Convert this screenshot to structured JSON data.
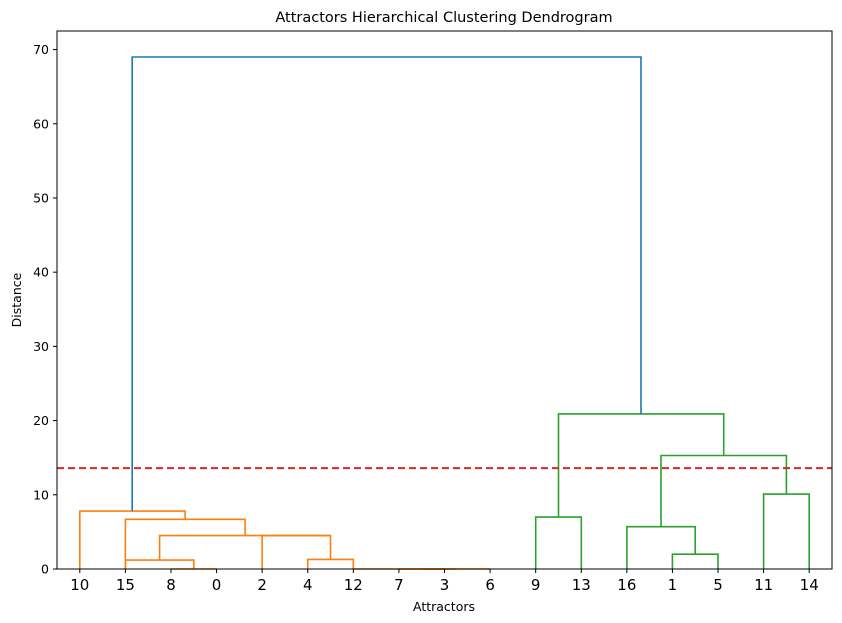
{
  "chart_data": {
    "type": "dendrogram",
    "title": "Attractors Hierarchical Clustering Dendrogram",
    "xlabel": "Attractors",
    "ylabel": "Distance",
    "ylim": [
      0,
      72.5
    ],
    "yticks": [
      0,
      10,
      20,
      30,
      40,
      50,
      60,
      70
    ],
    "leaf_labels": [
      "10",
      "15",
      "8",
      "0",
      "2",
      "4",
      "12",
      "7",
      "3",
      "6",
      "9",
      "13",
      "16",
      "1",
      "5",
      "11",
      "14"
    ],
    "threshold": 13.6,
    "threshold_color": "#d62728",
    "colors": {
      "orange": "#ff7f0e",
      "green": "#2ca02c",
      "blue": "#1f77b4"
    },
    "links": [
      {
        "x": [
          25,
          25,
          35,
          35
        ],
        "y": [
          0,
          0,
          0,
          0
        ],
        "color": "orange"
      },
      {
        "x": [
          15,
          15,
          30,
          30
        ],
        "y": [
          0,
          1.2,
          1.2,
          0
        ],
        "color": "orange"
      },
      {
        "x": [
          75,
          75,
          85,
          85
        ],
        "y": [
          0,
          0,
          0,
          0
        ],
        "color": "orange"
      },
      {
        "x": [
          80,
          80,
          95,
          95
        ],
        "y": [
          0,
          0,
          0,
          0
        ],
        "color": "orange"
      },
      {
        "x": [
          65,
          65,
          87.5,
          87.5
        ],
        "y": [
          0,
          0,
          0,
          0
        ],
        "color": "orange"
      },
      {
        "x": [
          55,
          55,
          65,
          65
        ],
        "y": [
          0,
          1.3,
          1.3,
          0
        ],
        "color": "orange"
      },
      {
        "x": [
          45,
          45,
          60,
          60
        ],
        "y": [
          0,
          4.5,
          4.5,
          1.3
        ],
        "color": "orange"
      },
      {
        "x": [
          22.5,
          22.5,
          60,
          60
        ],
        "y": [
          1.2,
          4.5,
          4.5,
          4.5
        ],
        "color": "orange"
      },
      {
        "x": [
          15,
          15,
          41.25,
          41.25
        ],
        "y": [
          0,
          6.7,
          6.7,
          4.5
        ],
        "color": "orange"
      },
      {
        "x": [
          5,
          5,
          28.1,
          28.1
        ],
        "y": [
          0,
          7.8,
          7.8,
          6.7
        ],
        "color": "orange"
      },
      {
        "x": [
          105,
          105,
          115,
          115
        ],
        "y": [
          0,
          7.0,
          7.0,
          0
        ],
        "color": "green"
      },
      {
        "x": [
          135,
          135,
          145,
          145
        ],
        "y": [
          0,
          2.0,
          2.0,
          0
        ],
        "color": "green"
      },
      {
        "x": [
          125,
          125,
          140,
          140
        ],
        "y": [
          0,
          5.7,
          5.7,
          2.0
        ],
        "color": "green"
      },
      {
        "x": [
          155,
          155,
          165,
          165
        ],
        "y": [
          0,
          10.1,
          10.1,
          0
        ],
        "color": "green"
      },
      {
        "x": [
          132.5,
          132.5,
          160,
          160
        ],
        "y": [
          5.7,
          15.3,
          15.3,
          10.1
        ],
        "color": "green"
      },
      {
        "x": [
          110,
          110,
          146.25,
          146.25
        ],
        "y": [
          7.0,
          20.9,
          20.9,
          15.3
        ],
        "color": "green"
      },
      {
        "x": [
          16.5,
          16.5,
          128.1,
          128.1
        ],
        "y": [
          7.8,
          69.0,
          69.0,
          20.9
        ],
        "color": "blue"
      }
    ]
  }
}
